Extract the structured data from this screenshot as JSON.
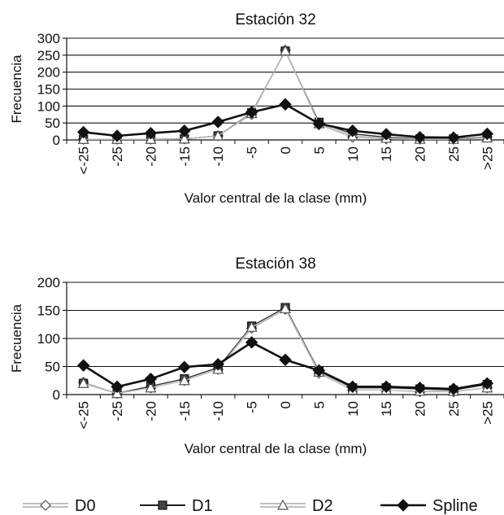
{
  "chart_data": [
    {
      "type": "line",
      "title": "Estación 32",
      "xlabel": "Valor central de la clase (mm)",
      "ylabel": "Frecuencia",
      "categories": [
        "<-25",
        "-25",
        "-20",
        "-15",
        "-10",
        "-5",
        "0",
        "5",
        "10",
        "15",
        "20",
        "25",
        ">25"
      ],
      "ylim": [
        0,
        300
      ],
      "yticks": [
        0,
        50,
        100,
        150,
        200,
        250,
        300
      ],
      "grid": true,
      "series": [
        {
          "name": "D0",
          "values": [
            2,
            2,
            2,
            3,
            12,
            75,
            265,
            45,
            8,
            3,
            2,
            2,
            8
          ]
        },
        {
          "name": "D1",
          "values": [
            2,
            2,
            2,
            3,
            12,
            80,
            262,
            52,
            18,
            8,
            3,
            3,
            8
          ]
        },
        {
          "name": "D2",
          "values": [
            2,
            2,
            2,
            3,
            12,
            78,
            263,
            48,
            12,
            5,
            2,
            2,
            6
          ]
        },
        {
          "name": "Spline",
          "values": [
            23,
            12,
            20,
            27,
            53,
            82,
            105,
            48,
            27,
            17,
            8,
            7,
            18
          ]
        }
      ]
    },
    {
      "type": "line",
      "title": "Estación 38",
      "xlabel": "Valor central de la clase (mm)",
      "ylabel": "Frecuencia",
      "categories": [
        "<-25",
        "-25",
        "-20",
        "-15",
        "-10",
        "-5",
        "0",
        "5",
        "10",
        "15",
        "20",
        "25",
        ">25"
      ],
      "ylim": [
        0,
        200
      ],
      "yticks": [
        0,
        50,
        100,
        150,
        200
      ],
      "grid": true,
      "series": [
        {
          "name": "D0",
          "values": [
            22,
            2,
            12,
            25,
            45,
            118,
            152,
            38,
            8,
            8,
            5,
            5,
            12
          ]
        },
        {
          "name": "D1",
          "values": [
            20,
            2,
            15,
            28,
            48,
            122,
            155,
            42,
            12,
            12,
            10,
            8,
            18
          ]
        },
        {
          "name": "D2",
          "values": [
            20,
            2,
            12,
            25,
            45,
            120,
            153,
            40,
            8,
            8,
            6,
            6,
            12
          ]
        },
        {
          "name": "Spline",
          "values": [
            52,
            14,
            28,
            49,
            54,
            93,
            62,
            43,
            14,
            14,
            12,
            10,
            20
          ]
        }
      ]
    }
  ],
  "legend": {
    "placement": "bottom",
    "items": [
      {
        "name": "D0",
        "marker": "diamond-open",
        "line_color": "#aaaaaa",
        "marker_color": "#777777"
      },
      {
        "name": "D1",
        "marker": "square-filled",
        "line_color": "#222222",
        "marker_color": "#111111"
      },
      {
        "name": "D2",
        "marker": "triangle-open",
        "line_color": "#aaaaaa",
        "marker_color": "#777777"
      },
      {
        "name": "Spline",
        "marker": "diamond-filled",
        "line_color": "#111111",
        "marker_color": "#111111"
      }
    ]
  }
}
